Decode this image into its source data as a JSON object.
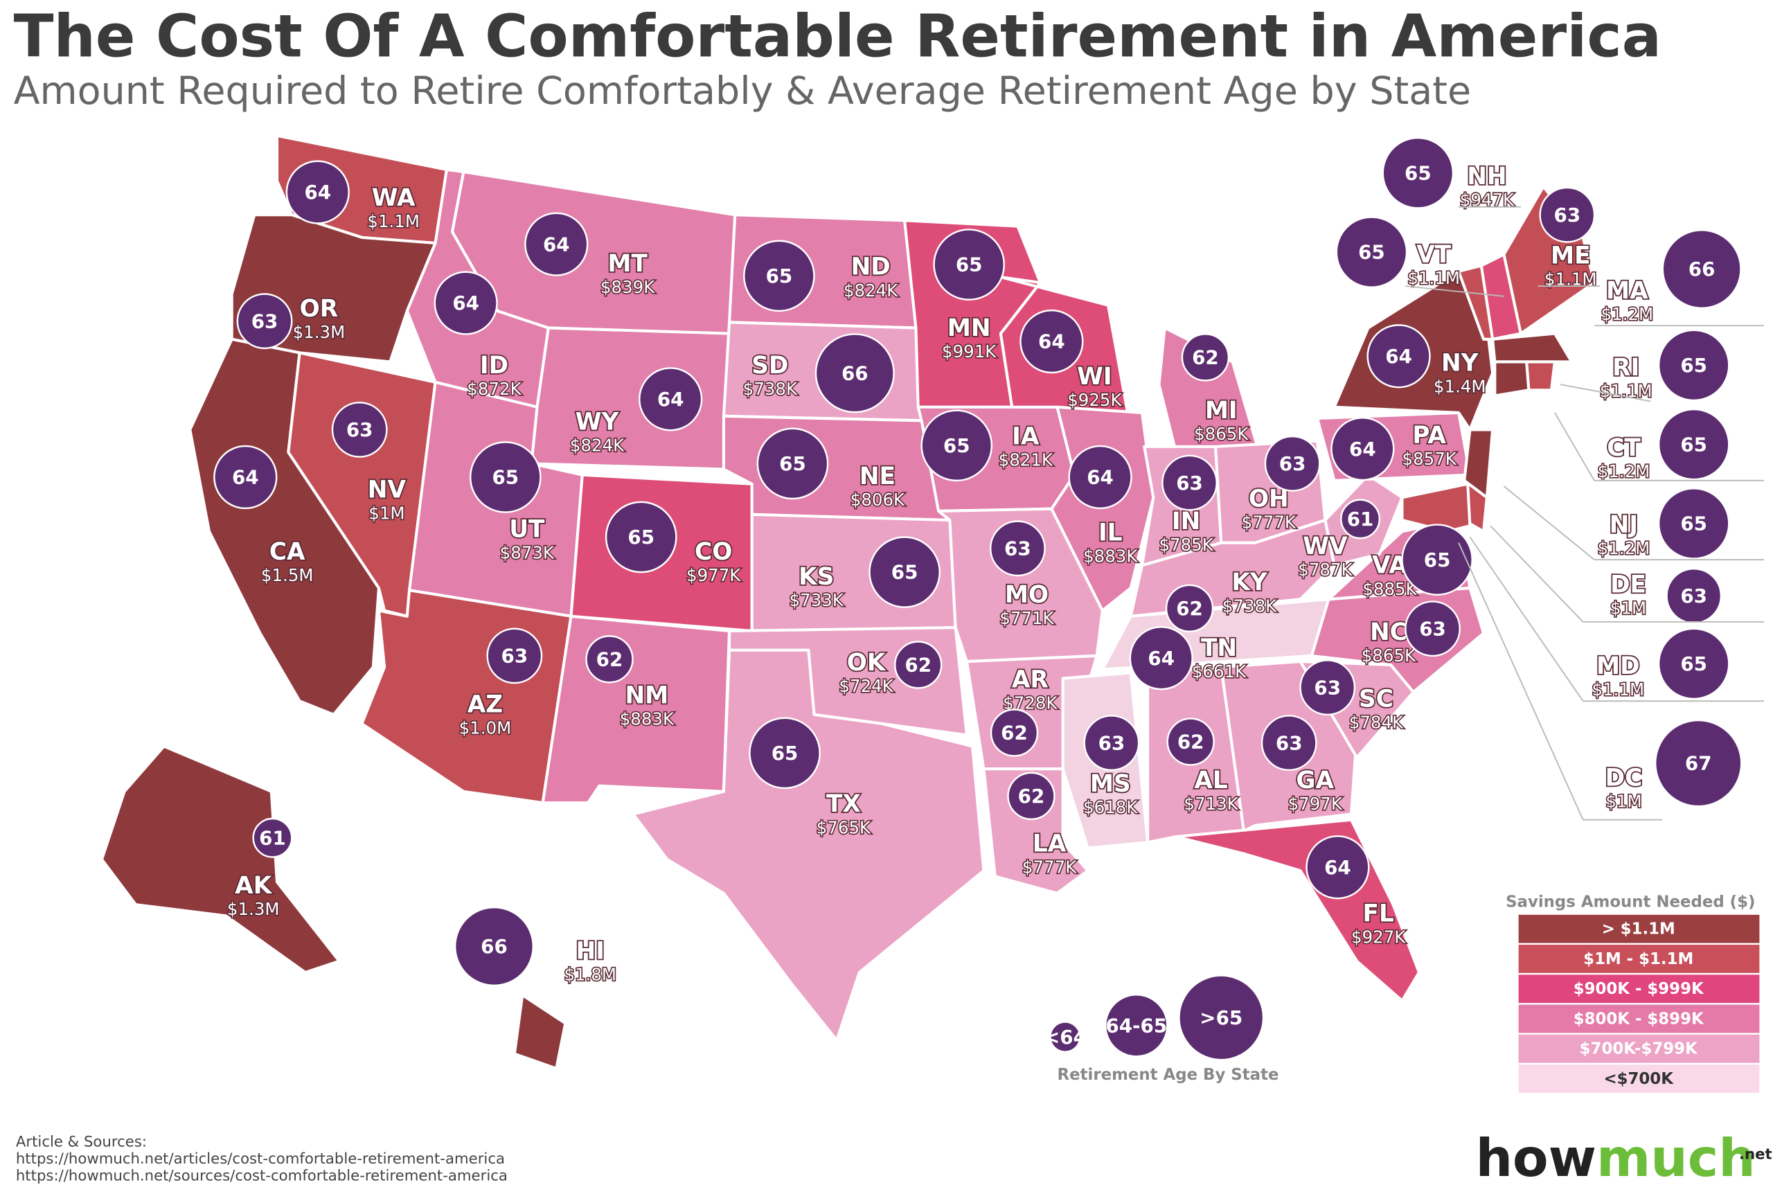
{
  "header": {
    "title": "The Cost Of A Comfortable Retirement in America",
    "subtitle": "Amount Required to Retire Comfortably & Average Retirement Age by State"
  },
  "states": [
    {
      "abbr": "WA",
      "amount": "$1.1M",
      "age": 64,
      "color": "#c34e56"
    },
    {
      "abbr": "OR",
      "amount": "$1.3M",
      "age": 63,
      "color": "#8e3a3d"
    },
    {
      "abbr": "CA",
      "amount": "$1.5M",
      "age": 64,
      "color": "#8e3a3d"
    },
    {
      "abbr": "NV",
      "amount": "$1M",
      "age": 63,
      "color": "#c34e56"
    },
    {
      "abbr": "ID",
      "amount": "$872K",
      "age": 64,
      "color": "#e27fab"
    },
    {
      "abbr": "MT",
      "amount": "$839K",
      "age": 64,
      "color": "#e27fab"
    },
    {
      "abbr": "WY",
      "amount": "$824K",
      "age": 64,
      "color": "#e27fab"
    },
    {
      "abbr": "UT",
      "amount": "$873K",
      "age": 65,
      "color": "#e27fab"
    },
    {
      "abbr": "AZ",
      "amount": "$1.0M",
      "age": 63,
      "color": "#c34e56"
    },
    {
      "abbr": "CO",
      "amount": "$977K",
      "age": 65,
      "color": "#dd4d77"
    },
    {
      "abbr": "NM",
      "amount": "$883K",
      "age": 62,
      "color": "#e27fab"
    },
    {
      "abbr": "ND",
      "amount": "$824K",
      "age": 65,
      "color": "#e27fab"
    },
    {
      "abbr": "SD",
      "amount": "$738K",
      "age": 66,
      "color": "#eba3c5"
    },
    {
      "abbr": "NE",
      "amount": "$806K",
      "age": 65,
      "color": "#e27fab"
    },
    {
      "abbr": "KS",
      "amount": "$733K",
      "age": 65,
      "color": "#eba3c5"
    },
    {
      "abbr": "OK",
      "amount": "$724K",
      "age": 62,
      "color": "#eba3c5"
    },
    {
      "abbr": "TX",
      "amount": "$765K",
      "age": 65,
      "color": "#eba3c5"
    },
    {
      "abbr": "MN",
      "amount": "$991K",
      "age": 65,
      "color": "#dd4d77"
    },
    {
      "abbr": "IA",
      "amount": "$821K",
      "age": 65,
      "color": "#e27fab"
    },
    {
      "abbr": "MO",
      "amount": "$771K",
      "age": 63,
      "color": "#eba3c5"
    },
    {
      "abbr": "AR",
      "amount": "$728K",
      "age": 62,
      "color": "#eba3c5"
    },
    {
      "abbr": "LA",
      "amount": "$777K",
      "age": 62,
      "color": "#eba3c5"
    },
    {
      "abbr": "WI",
      "amount": "$925K",
      "age": 64,
      "color": "#dd4d77"
    },
    {
      "abbr": "IL",
      "amount": "$883K",
      "age": 64,
      "color": "#e27fab"
    },
    {
      "abbr": "MI",
      "amount": "$865K",
      "age": 62,
      "color": "#e27fab"
    },
    {
      "abbr": "IN",
      "amount": "$785K",
      "age": 63,
      "color": "#eba3c5"
    },
    {
      "abbr": "OH",
      "amount": "$777K",
      "age": 63,
      "color": "#eba3c5"
    },
    {
      "abbr": "KY",
      "amount": "$738K",
      "age": 62,
      "color": "#eba3c5"
    },
    {
      "abbr": "TN",
      "amount": "$661K",
      "age": 64,
      "color": "#f3d3e2"
    },
    {
      "abbr": "MS",
      "amount": "$618K",
      "age": 63,
      "color": "#f3d3e2"
    },
    {
      "abbr": "AL",
      "amount": "$713K",
      "age": 62,
      "color": "#eba3c5"
    },
    {
      "abbr": "GA",
      "amount": "$797K",
      "age": 63,
      "color": "#eba3c5"
    },
    {
      "abbr": "FL",
      "amount": "$927K",
      "age": 64,
      "color": "#dd4d77"
    },
    {
      "abbr": "SC",
      "amount": "$784K",
      "age": 63,
      "color": "#eba3c5"
    },
    {
      "abbr": "NC",
      "amount": "$865K",
      "age": 63,
      "color": "#e27fab"
    },
    {
      "abbr": "VA",
      "amount": "$885K",
      "age": 65,
      "color": "#e27fab"
    },
    {
      "abbr": "WV",
      "amount": "$787K",
      "age": 61,
      "color": "#eba3c5"
    },
    {
      "abbr": "PA",
      "amount": "$857K",
      "age": 64,
      "color": "#e27fab"
    },
    {
      "abbr": "NY",
      "amount": "$1.4M",
      "age": 64,
      "color": "#8e3a3d"
    },
    {
      "abbr": "AK",
      "amount": "$1.3M",
      "age": 61,
      "color": "#8e3a3d"
    },
    {
      "abbr": "HI",
      "amount": "$1.8M",
      "age": 66,
      "color": "#8e3a3d"
    },
    {
      "abbr": "NH",
      "amount": "$947K",
      "age": 65,
      "color": "#dd4d77"
    },
    {
      "abbr": "VT",
      "amount": "$1.1M",
      "age": 65,
      "color": "#c34e56"
    },
    {
      "abbr": "ME",
      "amount": "$1.1M",
      "age": 63,
      "color": "#c34e56"
    },
    {
      "abbr": "MA",
      "amount": "$1.2M",
      "age": 66,
      "color": "#8e3a3d"
    },
    {
      "abbr": "RI",
      "amount": "$1.1M",
      "age": 65,
      "color": "#c34e56"
    },
    {
      "abbr": "CT",
      "amount": "$1.2M",
      "age": 65,
      "color": "#8e3a3d"
    },
    {
      "abbr": "NJ",
      "amount": "$1.2M",
      "age": 65,
      "color": "#8e3a3d"
    },
    {
      "abbr": "DE",
      "amount": "$1M",
      "age": 63,
      "color": "#c34e56"
    },
    {
      "abbr": "MD",
      "amount": "$1.1M",
      "age": 65,
      "color": "#c34e56"
    },
    {
      "abbr": "DC",
      "amount": "$1M",
      "age": 67,
      "color": "#c34e56"
    }
  ],
  "age_legend": {
    "title": "Retirement Age By State",
    "items": [
      "<64",
      "64-65",
      ">65"
    ]
  },
  "savings_legend": {
    "title": "Savings Amount Needed ($)",
    "items": [
      {
        "label": "> $1.1M",
        "color": "#9b3f40"
      },
      {
        "label": "$1M - $1.1M",
        "color": "#c9505a"
      },
      {
        "label": "$900K - $999K",
        "color": "#e0457d"
      },
      {
        "label": "$800K - $899K",
        "color": "#e57aa8"
      },
      {
        "label": "$700K-$799K",
        "color": "#eca3c5"
      },
      {
        "label": "<$700K",
        "color": "#f9d9e7"
      }
    ]
  },
  "footer": {
    "heading": "Article & Sources:",
    "links": [
      "https://howmuch.net/articles/cost-comfortable-retirement-america",
      "https://howmuch.net/sources/cost-comfortable-retirement-america"
    ]
  },
  "logo": {
    "parts": [
      "how",
      "much"
    ],
    "suffix": ".net"
  }
}
